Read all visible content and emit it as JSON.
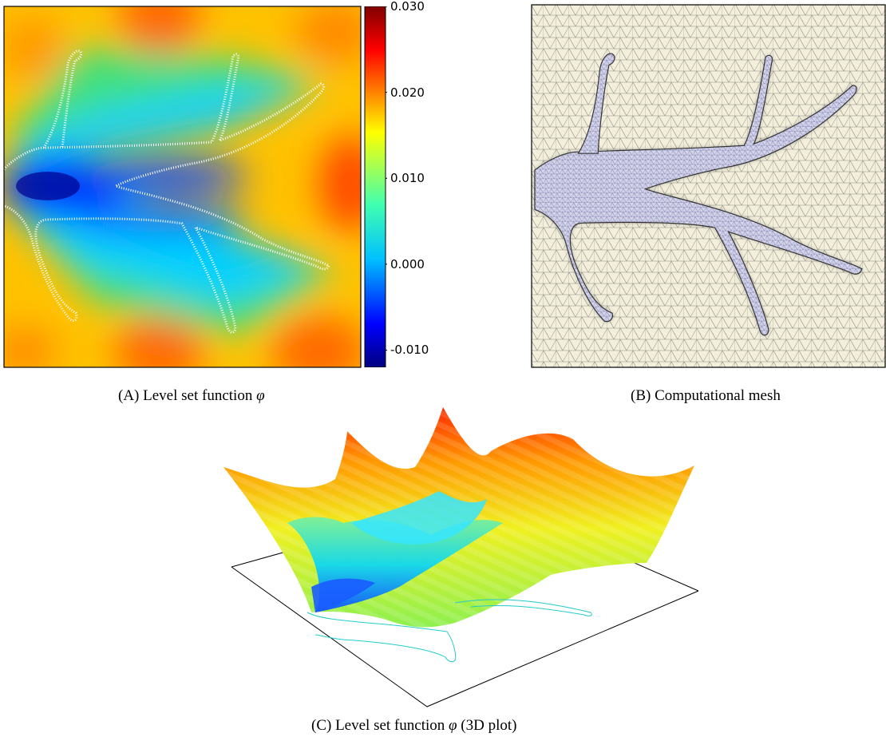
{
  "figure": {
    "panels": [
      {
        "id": "a",
        "label": "(A)",
        "caption_text": "Level set function",
        "caption_symbol": "φ",
        "colorbar": {
          "ticks": [
            "0.030",
            "0.020",
            "0.010",
            "0.000",
            "-0.010"
          ],
          "values": [
            0.03,
            0.02,
            0.01,
            0.0,
            -0.01
          ],
          "range": [
            -0.012,
            0.03
          ],
          "colormap": "jet"
        }
      },
      {
        "id": "b",
        "label": "(B)",
        "caption_text": "Computational mesh",
        "colors": {
          "outside": "#f3efdb",
          "inside": "#d5d5ec",
          "edges": "#6f6f6f"
        }
      },
      {
        "id": "c",
        "label": "(C)",
        "caption_text": "Level set function",
        "caption_symbol": "φ",
        "caption_suffix": "(3D plot)"
      }
    ],
    "colors": {
      "contour_line": "#ffffff",
      "zero_contour_3d": "#22cccc"
    }
  }
}
